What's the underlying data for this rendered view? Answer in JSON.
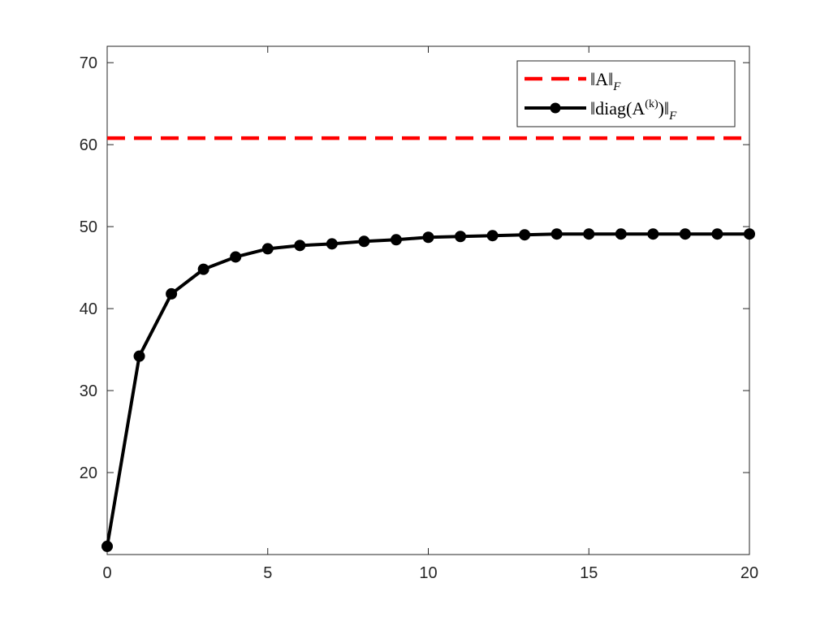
{
  "chart_data": {
    "type": "line",
    "title": "",
    "xlabel": "",
    "ylabel": "",
    "xlim": [
      0,
      20
    ],
    "ylim": [
      10,
      72
    ],
    "xticks": [
      0,
      5,
      10,
      15,
      20
    ],
    "yticks": [
      20,
      30,
      40,
      50,
      60,
      70
    ],
    "grid": false,
    "legend_position": "top-right",
    "series": [
      {
        "name": "‖A‖F",
        "legend_parts": {
          "pre": "‖A‖",
          "sub": "F"
        },
        "style": "dashed",
        "marker": "none",
        "color": "#ff0000",
        "x": [
          0,
          20
        ],
        "y": [
          60.8,
          60.8
        ]
      },
      {
        "name": "‖diag(A(k))‖F",
        "legend_parts": {
          "pre": "‖diag(A",
          "sup": "(k)",
          "mid": ")‖",
          "sub": "F"
        },
        "style": "solid",
        "marker": "circle",
        "color": "#000000",
        "x": [
          0,
          1,
          2,
          3,
          4,
          5,
          6,
          7,
          8,
          9,
          10,
          11,
          12,
          13,
          14,
          15,
          16,
          17,
          18,
          19,
          20
        ],
        "y": [
          11.0,
          34.2,
          41.8,
          44.8,
          46.3,
          47.3,
          47.7,
          47.9,
          48.2,
          48.4,
          48.7,
          48.8,
          48.9,
          49.0,
          49.1,
          49.1,
          49.1,
          49.1,
          49.1,
          49.1,
          49.1
        ]
      }
    ]
  }
}
